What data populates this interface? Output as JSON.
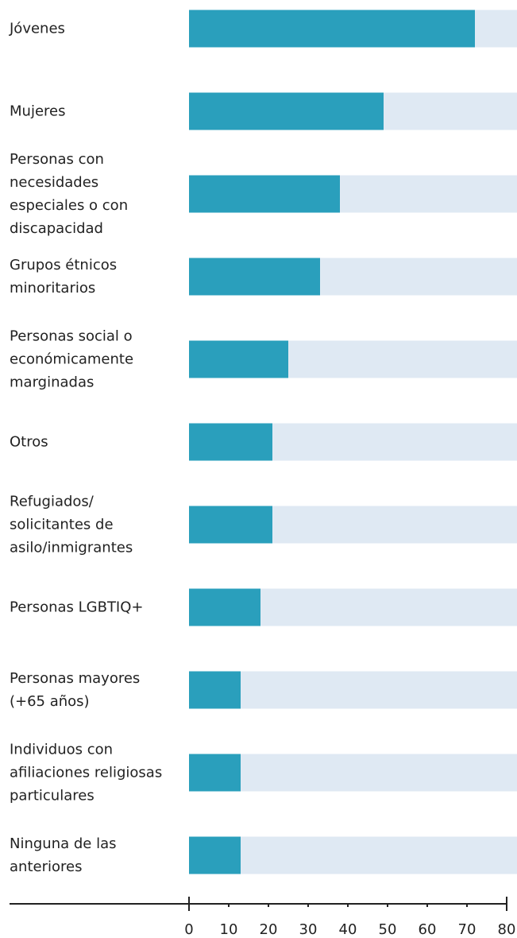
{
  "chart_data": {
    "type": "bar",
    "orientation": "horizontal",
    "categories": [
      "Jóvenes",
      "Mujeres",
      "Personas con necesidades especiales o con discapacidad",
      "Grupos étnicos minoritarios",
      "Personas social o económicamente marginadas",
      "Otros",
      "Refugiados/ solicitantes de asilo/inmigrantes",
      "Personas LGBTIQ+",
      "Personas mayores (+65 años)",
      "Individuos con afiliaciones religiosas particulares",
      "Ninguna de las anteriores"
    ],
    "values": [
      72,
      49,
      38,
      33,
      25,
      21,
      21,
      18,
      13,
      13,
      13
    ],
    "color": "#2a9fbc",
    "track_color": "#dfe9f3",
    "xlim": [
      0,
      80
    ],
    "xticks": [
      0,
      10,
      20,
      30,
      40,
      50,
      60,
      70,
      80
    ]
  }
}
